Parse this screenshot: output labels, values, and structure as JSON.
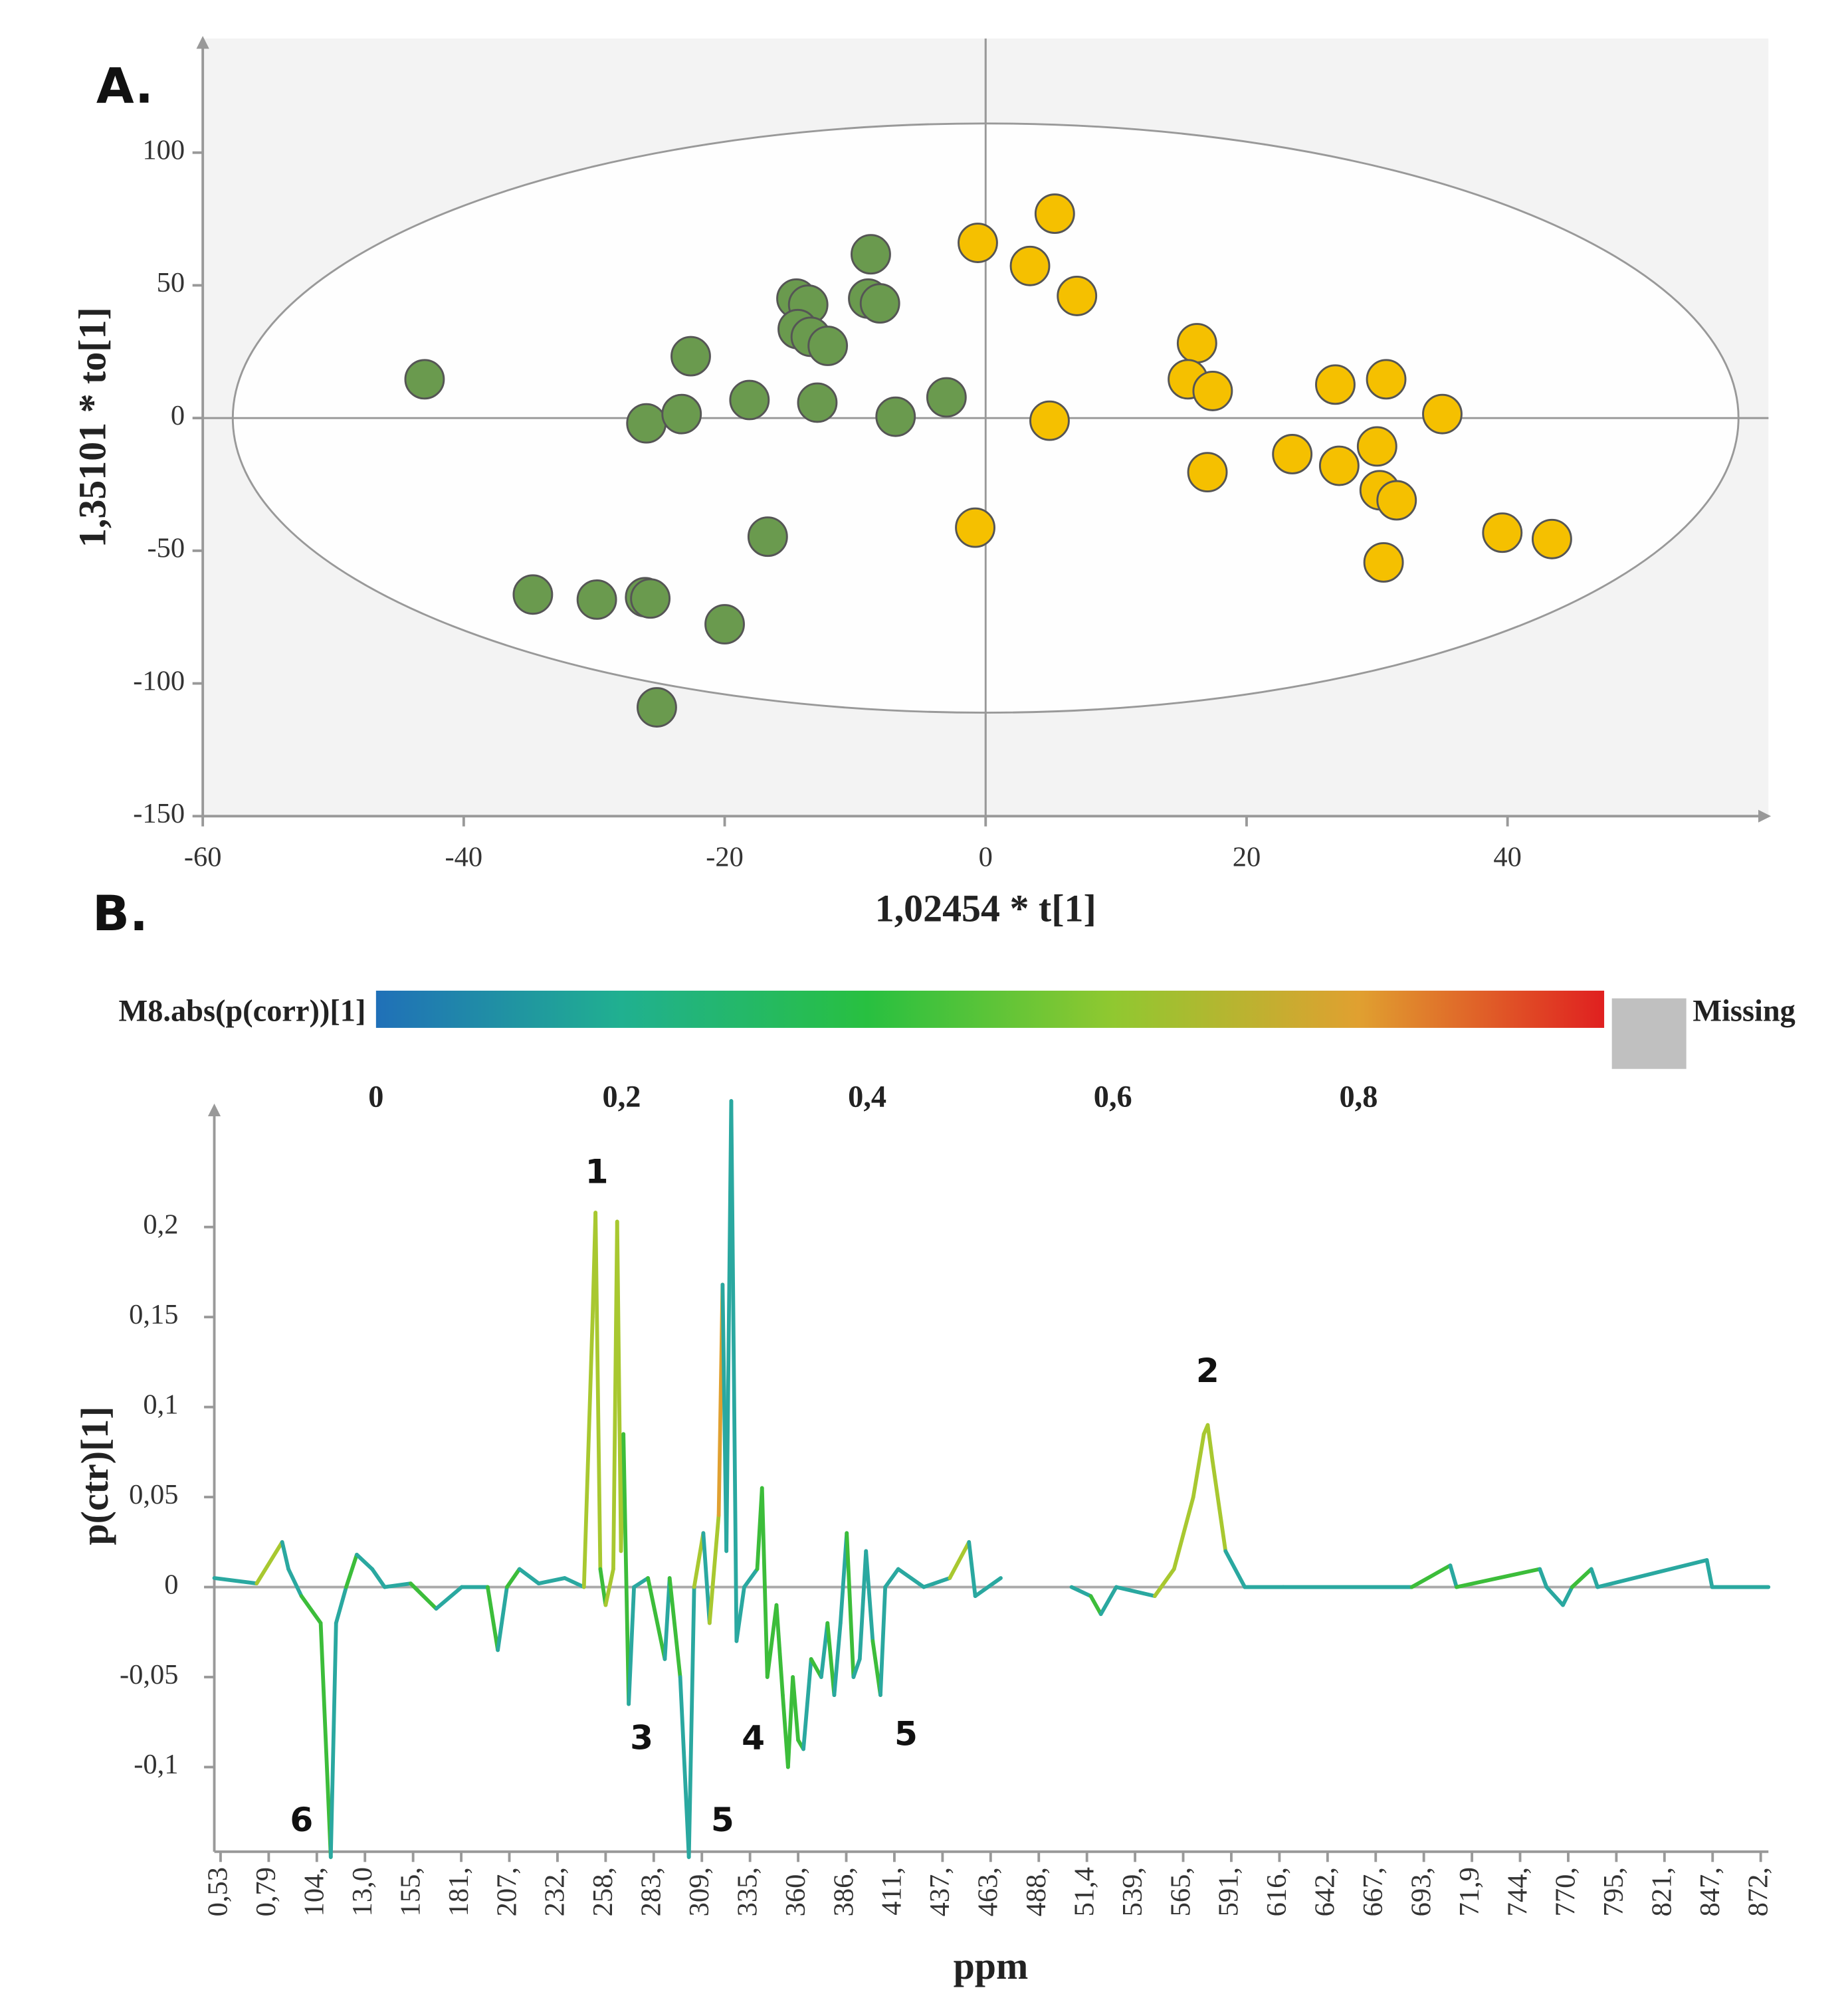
{
  "chart_data": [
    {
      "type": "scatter",
      "panel_label": "A.",
      "xlabel": "1,02454 * t[1]",
      "ylabel": "1,35101 * to[1]",
      "xlim": [
        -60,
        59.7
      ],
      "ylim": [
        -150,
        143
      ],
      "xticks": [
        -60,
        -40,
        -20,
        0,
        20,
        40
      ],
      "yticks": [
        -150,
        -100,
        -50,
        0,
        50,
        100
      ],
      "ellipse": {
        "rx": 57.7,
        "ry": 111
      },
      "series": [
        {
          "color": "#6a9a4e",
          "x": [
            -43,
            -34.7,
            -29.8,
            -26.1,
            -25.7,
            -25.2,
            -26,
            -23.3,
            -22.6,
            -20,
            -18.1,
            -16.7,
            -14.5,
            -13.6,
            -14.4,
            -13.4,
            -12.1,
            -12.9,
            -8.8,
            -9,
            -8.1,
            -6.9,
            -3
          ],
          "values": [
            14.6,
            -66.5,
            -68.4,
            -67.5,
            -68,
            -109,
            -2,
            1.5,
            23.3,
            -77.7,
            6.8,
            -44.7,
            45,
            42.7,
            33.5,
            30.6,
            27.2,
            5.8,
            61.7,
            45,
            43.2,
            0.5,
            7.8
          ]
        },
        {
          "color": "#f5c000",
          "x": [
            -0.6,
            5.3,
            3.4,
            7,
            4.9,
            -0.8,
            16.2,
            15.5,
            17.4,
            17,
            23.5,
            26.8,
            27.1,
            30.7,
            30,
            30.2,
            31.5,
            30.5,
            35,
            39.6,
            43.4
          ],
          "values": [
            66,
            77,
            57.3,
            46,
            -1,
            -41.3,
            28.2,
            14.6,
            10.2,
            -20.4,
            -13.6,
            12.6,
            -18,
            14.6,
            -10.7,
            -27.2,
            -31,
            -54.4,
            1.5,
            -43.2,
            -45.6
          ]
        }
      ]
    },
    {
      "type": "line",
      "panel_label": "B.",
      "xlabel": "ppm",
      "ylabel": "p(ctr)[1]",
      "colorbar": {
        "label": "M8.abs(p(corr))[1]",
        "missing_label": "Missing",
        "missing_color": "#c0c0c0",
        "stops": [
          {
            "value": 0,
            "color": "#2070b8"
          },
          {
            "value": 0.2,
            "color": "#20b090"
          },
          {
            "value": 0.4,
            "color": "#28c040"
          },
          {
            "value": 0.6,
            "color": "#90c830"
          },
          {
            "value": 0.8,
            "color": "#e0a030"
          },
          {
            "value": 1,
            "color": "#e02020"
          }
        ],
        "ticks": [
          {
            "value": 0,
            "label": "0"
          },
          {
            "value": 0.2,
            "label": "0,2"
          },
          {
            "value": 0.4,
            "label": "0,4"
          },
          {
            "value": 0.6,
            "label": "0,6"
          },
          {
            "value": 0.8,
            "label": "0,8"
          }
        ]
      },
      "annotations": [
        "1",
        "2",
        "3",
        "4",
        "5",
        "5",
        "6"
      ],
      "xlim": [
        -0.13,
        32.16
      ],
      "ylim": [
        -0.147,
        0.27
      ],
      "yticks": [
        {
          "value": -0.1,
          "label": "-0,1"
        },
        {
          "value": -0.05,
          "label": "-0,05"
        },
        0,
        {
          "value": 0.05,
          "label": "0,05"
        },
        {
          "value": 0.1,
          "label": "0,1"
        },
        {
          "value": 0.15,
          "label": "0,15"
        },
        {
          "value": 0.2,
          "label": "0,2"
        }
      ],
      "xticks": [
        {
          "value": 0,
          "label": "0,53"
        },
        {
          "value": 1,
          "label": "0,79"
        },
        {
          "value": 2,
          "label": "104,"
        },
        {
          "value": 3,
          "label": "13,0"
        },
        {
          "value": 4,
          "label": "155,"
        },
        {
          "value": 5,
          "label": "181,"
        },
        {
          "value": 6,
          "label": "207,"
        },
        {
          "value": 7,
          "label": "232,"
        },
        {
          "value": 8,
          "label": "258,"
        },
        {
          "value": 9,
          "label": "283,"
        },
        {
          "value": 10,
          "label": "309,"
        },
        {
          "value": 11,
          "label": "335,"
        },
        {
          "value": 12,
          "label": "360,"
        },
        {
          "value": 13,
          "label": "386,"
        },
        {
          "value": 14,
          "label": "411,"
        },
        {
          "value": 15,
          "label": "437,"
        },
        {
          "value": 16,
          "label": "463,"
        },
        {
          "value": 17,
          "label": "488,"
        },
        {
          "value": 18,
          "label": "51,4"
        },
        {
          "value": 19,
          "label": "539,"
        },
        {
          "value": 20,
          "label": "565,"
        },
        {
          "value": 21,
          "label": "591,"
        },
        {
          "value": 22,
          "label": "616,"
        },
        {
          "value": 23,
          "label": "642,"
        },
        {
          "value": 24,
          "label": "667,"
        },
        {
          "value": 25,
          "label": "693,"
        },
        {
          "value": 26,
          "label": "71,9"
        },
        {
          "value": 27,
          "label": "744,"
        },
        {
          "value": 28,
          "label": "770,"
        },
        {
          "value": 29,
          "label": "795,"
        },
        {
          "value": 30,
          "label": "821,"
        },
        {
          "value": 31,
          "label": "847,"
        },
        {
          "value": 32,
          "label": "872,"
        }
      ],
      "series": [
        {
          "x": [
            -0.13,
            0.75,
            1.28,
            1.41,
            1.68,
            2.08,
            2.29,
            2.4,
            2.61,
            2.83,
            3.15,
            3.41,
            3.95,
            4.48,
            5.01,
            5.55,
            5.76,
            5.95,
            6.21,
            6.61,
            7.15,
            7.55,
            7.73,
            7.79,
            7.89,
            8,
            8.16,
            8.24,
            8.32,
            8.37,
            8.48,
            8.59,
            8.88,
            9.23,
            9.33,
            9.55,
            9.73,
            9.84,
            10.03,
            10.16,
            10.35,
            10.43,
            10.51,
            10.61,
            10.72,
            10.88,
            11.15,
            11.25,
            11.36,
            11.55,
            11.68,
            11.79,
            11.89,
            12,
            12.11,
            12.27,
            12.48,
            12.61,
            12.75,
            12.88,
            13.01,
            13.15,
            13.28,
            13.41,
            13.55,
            13.71,
            13.81,
            14.08,
            14.61,
            15.15,
            15.55,
            15.68,
            16.21,
            16.5,
            17.68,
            18.08,
            18.29,
            18.61,
            19.41,
            19.81,
            20.21,
            20.43,
            20.51,
            20.61,
            20.88,
            21.28,
            22.08,
            24.75,
            25.55,
            25.68,
            27.41,
            27.55,
            27.89,
            28.08,
            28.48,
            28.61,
            30.88,
            30.99,
            32.16
          ],
          "values": [
            0.005,
            0.002,
            0.025,
            0.01,
            -0.005,
            -0.02,
            -0.15,
            -0.02,
            0,
            0.018,
            0.01,
            0,
            0.002,
            -0.012,
            0,
            0,
            -0.035,
            0,
            0.01,
            0.002,
            0.005,
            0,
            0.15,
            0.208,
            0.01,
            -0.01,
            0.01,
            0.203,
            0.02,
            0.085,
            -0.065,
            0,
            0.005,
            -0.04,
            0.005,
            -0.05,
            -0.15,
            0,
            0.03,
            -0.02,
            0.04,
            0.168,
            0.02,
            0.27,
            -0.03,
            0,
            0.01,
            0.055,
            -0.05,
            -0.01,
            -0.06,
            -0.1,
            -0.05,
            -0.085,
            -0.09,
            -0.04,
            -0.05,
            -0.02,
            -0.06,
            -0.02,
            0.03,
            -0.05,
            -0.04,
            0.02,
            -0.03,
            -0.06,
            0,
            0.01,
            0,
            0.005,
            0.025,
            -0.005,
            0.005,
            null,
            0,
            -0.005,
            -0.015,
            0,
            -0.005,
            0.01,
            0.05,
            0.085,
            0.09,
            0.07,
            0.02,
            0,
            0,
            0,
            0.012,
            0,
            0.01,
            0,
            -0.01,
            0,
            0.01,
            0,
            0.015,
            0,
            0
          ],
          "colors": [
            "#2aa8a0",
            "#2aa8a0",
            "#a8c830",
            "#2aa8a0",
            "#2aa8a0",
            "#3cbd3a",
            "#3cbd3a",
            "#2aa8a0",
            "#2aa8a0",
            "#3cbd3a",
            "#2aa8a0",
            "#2aa8a0",
            "#2aa8a0",
            "#3cbd3a",
            "#2aa8a0",
            "#2aa8a0",
            "#3cbd3a",
            "#2aa8a0",
            "#3cbd3a",
            "#2aa8a0",
            "#2aa8a0",
            "#2aa8a0",
            "#a8c830",
            "#a8c830",
            "#a8c830",
            "#3cbd3a",
            "#a8c830",
            "#a8c830",
            "#a8c830",
            "#a8c830",
            "#3cbd3a",
            "#2aa8a0",
            "#2aa8a0",
            "#3cbd3a",
            "#2aa8a0",
            "#3cbd3a",
            "#2aa8a0",
            "#2aa8a0",
            "#a8c830",
            "#2aa8a0",
            "#a8c830",
            "#e0a030",
            "#2aa8a0",
            "#2aa8a0",
            "#2aa8a0",
            "#2aa8a0",
            "#2aa8a0",
            "#3cbd3a",
            "#3cbd3a",
            "#3cbd3a",
            "#3cbd3a",
            "#3cbd3a",
            "#3cbd3a",
            "#3cbd3a",
            "#3cbd3a",
            "#2aa8a0",
            "#3cbd3a",
            "#2aa8a0",
            "#3cbd3a",
            "#2aa8a0",
            "#2aa8a0",
            "#3cbd3a",
            "#2aa8a0",
            "#2aa8a0",
            "#2aa8a0",
            "#3cbd3a",
            "#2aa8a0",
            "#2aa8a0",
            "#2aa8a0",
            "#2aa8a0",
            "#a8c830",
            "#2aa8a0",
            "#2aa8a0",
            null,
            "#2aa8a0",
            "#2aa8a0",
            "#3cbd3a",
            "#2aa8a0",
            "#2aa8a0",
            "#a8c830",
            "#a8c830",
            "#a8c830",
            "#a8c830",
            "#a8c830",
            "#a8c830",
            "#2aa8a0",
            "#2aa8a0",
            "#2aa8a0",
            "#3cbd3a",
            "#2aa8a0",
            "#3cbd3a",
            "#2aa8a0",
            "#2aa8a0",
            "#2aa8a0",
            "#3cbd3a",
            "#2aa8a0",
            "#2aa8a0",
            "#2aa8a0",
            "#2aa8a0"
          ]
        }
      ]
    }
  ]
}
